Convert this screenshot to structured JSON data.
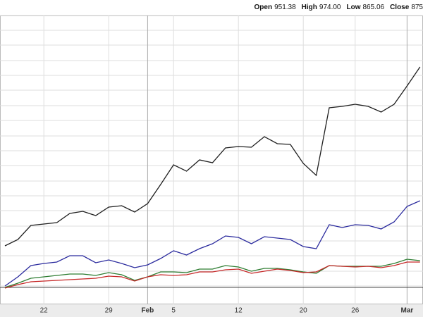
{
  "header": {
    "items": [
      {
        "label": "Open",
        "value": "951.38"
      },
      {
        "label": "High",
        "value": "974.00"
      },
      {
        "label": "Low",
        "value": "865.06"
      },
      {
        "label": "Close",
        "value": "875"
      }
    ]
  },
  "chart_data": {
    "type": "line",
    "categories": [
      null,
      null,
      null,
      "22",
      null,
      null,
      null,
      null,
      "29",
      null,
      null,
      "Feb",
      null,
      "5",
      null,
      null,
      null,
      null,
      "12",
      null,
      null,
      null,
      null,
      "20",
      null,
      null,
      null,
      "26",
      null,
      null,
      null,
      "Mar",
      null
    ],
    "series": [
      {
        "color": "#1e1e1e",
        "values": [
          59,
          68,
          88,
          90,
          92,
          105,
          108,
          102,
          114,
          116,
          107,
          119,
          146,
          174,
          165,
          181,
          177,
          198,
          200,
          199,
          214,
          204,
          203,
          176,
          159,
          255,
          257,
          260,
          257,
          249,
          260,
          286,
          313
        ]
      },
      {
        "color": "#2b2b9e",
        "values": [
          2,
          15,
          31,
          34,
          36,
          45,
          45,
          35,
          39,
          34,
          28,
          32,
          41,
          52,
          46,
          55,
          62,
          73,
          71,
          62,
          72,
          70,
          68,
          58,
          55,
          89,
          85,
          89,
          88,
          83,
          93,
          115,
          123
        ]
      },
      {
        "color": "#2e7d32",
        "values": [
          0,
          6,
          13,
          15,
          17,
          19,
          19,
          17,
          21,
          18,
          10,
          15,
          22,
          22,
          21,
          26,
          26,
          31,
          29,
          23,
          27,
          27,
          25,
          22,
          20,
          31,
          30,
          30,
          30,
          30,
          34,
          40,
          38
        ]
      },
      {
        "color": "#c62828",
        "values": [
          -1,
          4,
          8,
          9,
          10,
          11,
          12,
          13,
          16,
          15,
          9,
          15,
          18,
          17,
          18,
          22,
          22,
          25,
          26,
          20,
          23,
          26,
          24,
          21,
          22,
          31,
          30,
          29,
          30,
          28,
          31,
          36,
          36
        ]
      }
    ],
    "ylim": [
      -24,
      386
    ],
    "yticks": [
      2,
      23,
      45,
      66,
      87,
      109,
      130,
      151,
      173,
      194,
      215,
      237,
      258,
      280,
      301,
      322,
      344,
      365,
      386
    ],
    "grid": true
  }
}
